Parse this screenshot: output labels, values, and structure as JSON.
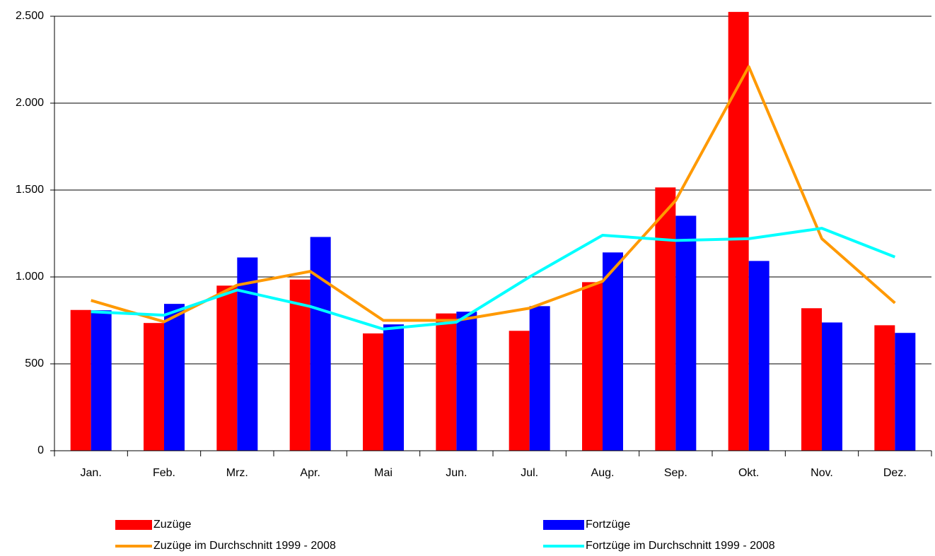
{
  "chart_data": {
    "type": "bar-line",
    "categories": [
      "Jan.",
      "Feb.",
      "Mrz.",
      "Apr.",
      "Mai",
      "Jun.",
      "Jul.",
      "Aug.",
      "Sep.",
      "Okt.",
      "Nov.",
      "Dez."
    ],
    "series": [
      {
        "name": "Zuzüge",
        "kind": "bar",
        "color": "#ff0000",
        "values": [
          810,
          735,
          950,
          985,
          675,
          790,
          690,
          970,
          1515,
          2525,
          820,
          722
        ]
      },
      {
        "name": "Fortzüge",
        "kind": "bar",
        "color": "#0000ff",
        "values": [
          808,
          845,
          1112,
          1230,
          727,
          800,
          832,
          1141,
          1352,
          1092,
          738,
          678
        ]
      },
      {
        "name": "Zuzüge im Durchschnitt 1999 - 2008",
        "kind": "line",
        "color": "#ff9900",
        "values": [
          865,
          742,
          953,
          1032,
          750,
          750,
          820,
          975,
          1440,
          2210,
          1220,
          850
        ]
      },
      {
        "name": "Fortzüge im Durchschnitt 1999 - 2008",
        "kind": "line",
        "color": "#00ffff",
        "values": [
          800,
          780,
          925,
          830,
          700,
          740,
          1000,
          1240,
          1210,
          1220,
          1280,
          1115
        ]
      }
    ],
    "ylim": [
      0,
      2500
    ],
    "yticks": [
      0,
      500,
      {
        "value": 1000,
        "label": "1.000"
      },
      {
        "value": 1500,
        "label": "1.500"
      },
      {
        "value": 2000,
        "label": "2.000"
      },
      {
        "value": 2500,
        "label": "2.500"
      }
    ],
    "grid": true,
    "legend": "bottom"
  }
}
